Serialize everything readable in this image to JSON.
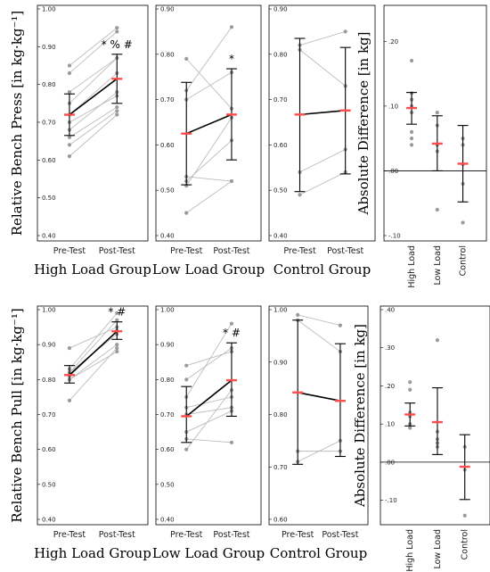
{
  "chart_data": [
    {
      "type": "line",
      "group_title": "High Load Group",
      "ylabel": "Relative Bench Press [in kg·kg⁻¹]",
      "ylim": [
        0.4,
        1.0
      ],
      "yticks": [
        "0.40",
        "0.50",
        "0.60",
        "0.70",
        "0.80",
        "0.90",
        "1.00"
      ],
      "categories": [
        "Pre-Test",
        "Post-Test"
      ],
      "pairs": [
        [
          0.85,
          0.95
        ],
        [
          0.83,
          0.94
        ],
        [
          0.78,
          0.87
        ],
        [
          0.75,
          0.87
        ],
        [
          0.72,
          0.83
        ],
        [
          0.7,
          0.77
        ],
        [
          0.68,
          0.78
        ],
        [
          0.66,
          0.74
        ],
        [
          0.64,
          0.73
        ],
        [
          0.61,
          0.72
        ]
      ],
      "mean": [
        0.72,
        0.815
      ],
      "error": [
        [
          0.665,
          0.775
        ],
        [
          0.75,
          0.88
        ]
      ],
      "significance": "* % #"
    },
    {
      "type": "line",
      "group_title": "Low Load Group",
      "ylim": [
        0.4,
        0.9
      ],
      "yticks": [
        "0.40",
        "0.50",
        "0.60",
        "0.70",
        "0.80",
        "0.90"
      ],
      "categories": [
        "Pre-Test",
        "Post-Test"
      ],
      "pairs": [
        [
          0.79,
          0.68
        ],
        [
          0.72,
          0.86
        ],
        [
          0.53,
          0.52
        ],
        [
          0.52,
          0.61
        ],
        [
          0.51,
          0.66
        ],
        [
          0.45,
          0.52
        ],
        [
          0.7,
          0.76
        ]
      ],
      "mean": [
        0.625,
        0.667
      ],
      "error": [
        [
          0.512,
          0.738
        ],
        [
          0.567,
          0.768
        ]
      ],
      "significance": "*"
    },
    {
      "type": "line",
      "group_title": "Control Group",
      "ylim": [
        0.4,
        0.9
      ],
      "yticks": [
        "0.40",
        "0.50",
        "0.60",
        "0.70",
        "0.80",
        "0.90"
      ],
      "categories": [
        "Pre-Test",
        "Post-Test"
      ],
      "pairs": [
        [
          0.82,
          0.85
        ],
        [
          0.81,
          0.73
        ],
        [
          0.54,
          0.59
        ],
        [
          0.49,
          0.54
        ]
      ],
      "mean": [
        0.667,
        0.676
      ],
      "error": [
        [
          0.497,
          0.835
        ],
        [
          0.536,
          0.815
        ]
      ],
      "significance": ""
    },
    {
      "type": "scatter",
      "ylabel": "Absolute Difference [in kg]",
      "ylim": [
        -0.1,
        0.25
      ],
      "yticks": [
        "-.10",
        ".00",
        ".10",
        ".20"
      ],
      "categories": [
        "High Load",
        "Low Load",
        "Control"
      ],
      "points": [
        [
          0.17,
          0.12,
          0.11,
          0.11,
          0.1,
          0.09,
          0.06,
          0.05,
          0.04
        ],
        [
          0.09,
          0.07,
          0.04,
          0.04,
          0.03,
          -0.06
        ],
        [
          0.05,
          0.04,
          0.01,
          -0.02,
          -0.08
        ]
      ],
      "mean": [
        0.097,
        0.042,
        0.011
      ],
      "error": [
        [
          0.072,
          0.121
        ],
        [
          0.0,
          0.085
        ],
        [
          -0.048,
          0.07
        ]
      ]
    },
    {
      "type": "line",
      "group_title": "High Load Group",
      "ylabel": "Relative Bench Pull [in kg·kg⁻¹]",
      "ylim": [
        0.4,
        1.0
      ],
      "yticks": [
        "0.40",
        "0.50",
        "0.60",
        "0.70",
        "0.80",
        "0.90",
        "1.00"
      ],
      "categories": [
        "Pre-Test",
        "Post-Test"
      ],
      "pairs": [
        [
          0.89,
          0.95
        ],
        [
          0.83,
          0.99
        ],
        [
          0.82,
          0.97
        ],
        [
          0.82,
          0.93
        ],
        [
          0.81,
          0.94
        ],
        [
          0.8,
          0.9
        ],
        [
          0.8,
          0.88
        ],
        [
          0.74,
          0.89
        ]
      ],
      "mean": [
        0.813,
        0.938
      ],
      "error": [
        [
          0.79,
          0.84
        ],
        [
          0.915,
          0.965
        ]
      ],
      "significance": "* #"
    },
    {
      "type": "line",
      "group_title": "Low Load Group",
      "ylim": [
        0.4,
        1.0
      ],
      "yticks": [
        "0.40",
        "0.50",
        "0.60",
        "0.70",
        "0.80",
        "0.90",
        "1.00"
      ],
      "categories": [
        "Pre-Test",
        "Post-Test"
      ],
      "pairs": [
        [
          0.84,
          0.88
        ],
        [
          0.8,
          0.89
        ],
        [
          0.75,
          0.96
        ],
        [
          0.72,
          0.75
        ],
        [
          0.7,
          0.72
        ],
        [
          0.65,
          0.71
        ],
        [
          0.63,
          0.62
        ],
        [
          0.6,
          0.77
        ]
      ],
      "mean": [
        0.695,
        0.798
      ],
      "error": [
        [
          0.62,
          0.78
        ],
        [
          0.695,
          0.905
        ]
      ],
      "significance": "* #"
    },
    {
      "type": "line",
      "group_title": "Control Group",
      "ylim": [
        0.6,
        1.0
      ],
      "yticks": [
        "0.60",
        "0.70",
        "0.80",
        "0.90",
        "1.00"
      ],
      "categories": [
        "Pre-Test",
        "Post-Test"
      ],
      "pairs": [
        [
          0.99,
          0.97
        ],
        [
          0.98,
          0.92
        ],
        [
          0.73,
          0.73
        ],
        [
          0.71,
          0.75
        ]
      ],
      "mean": [
        0.842,
        0.826
      ],
      "error": [
        [
          0.705,
          0.98
        ],
        [
          0.72,
          0.935
        ]
      ],
      "significance": ""
    },
    {
      "type": "scatter",
      "ylabel": "Absolute Difference [in kg]",
      "ylim": [
        -0.15,
        0.4
      ],
      "yticks": [
        "-.10",
        ".00",
        ".10",
        ".20",
        ".30",
        ".40"
      ],
      "categories": [
        "High Load",
        "Low Load",
        "Control"
      ],
      "points": [
        [
          0.21,
          0.19,
          0.13,
          0.12,
          0.1,
          0.1,
          0.09
        ],
        [
          0.32,
          0.08,
          0.06,
          0.05,
          0.05,
          0.04
        ],
        [
          0.04,
          -0.02,
          -0.14
        ]
      ],
      "mean": [
        0.125,
        0.105,
        -0.012
      ],
      "error": [
        [
          0.095,
          0.155
        ],
        [
          0.02,
          0.195
        ],
        [
          -0.098,
          0.072
        ]
      ]
    }
  ]
}
